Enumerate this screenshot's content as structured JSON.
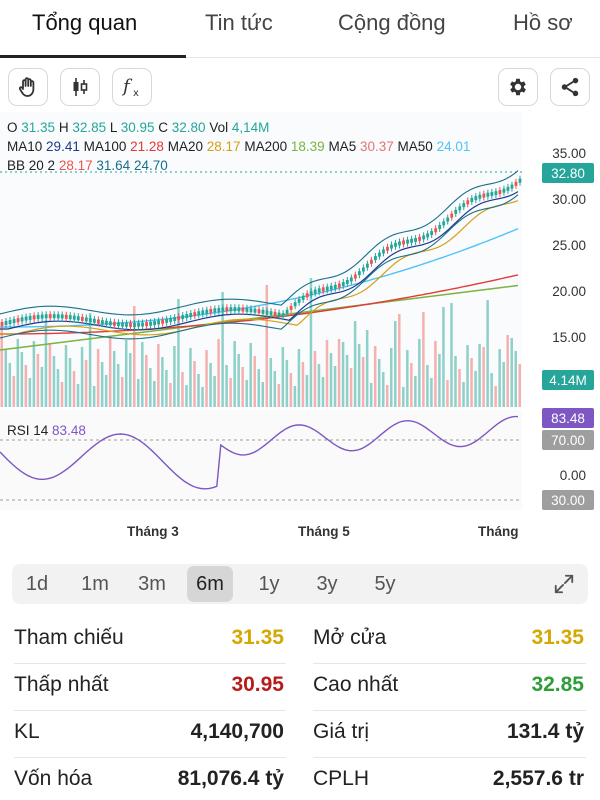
{
  "tabs": [
    "Tổng quan",
    "Tin tức",
    "Cộng đồng",
    "Hồ sơ"
  ],
  "toolbar": {
    "left_icons": [
      "hand-icon",
      "candlestick-icon",
      "function-icon"
    ],
    "right_icons": [
      "gear-icon",
      "share-icon"
    ]
  },
  "info": {
    "o_label": "O",
    "o_value": "31.35",
    "h_label": "H",
    "h_value": "32.85",
    "l_label": "L",
    "l_value": "30.95",
    "c_label": "C",
    "c_value": "32.80",
    "vol_label": "Vol",
    "vol_value": "4,14M",
    "ma10_label": "MA10",
    "ma10_value": "29.41",
    "ma100_label": "MA100",
    "ma100_value": "21.28",
    "ma20_label": "MA20",
    "ma20_value": "28.17",
    "ma200_label": "MA200",
    "ma200_value": "18.39",
    "ma5_label": "MA5",
    "ma5_value": "30.37",
    "ma50_label": "MA50",
    "ma50_value": "24.01",
    "bb_label": "BB 20 2",
    "bb_mid": "28.17",
    "bb_upper": "31.64",
    "bb_lower": "24.70",
    "rsi_label": "RSI 14",
    "rsi_value": "83.48"
  },
  "price_axis": [
    "35.00",
    "30.00",
    "25.00",
    "20.00",
    "15.00"
  ],
  "rsi_axis": {
    "upper": "70.00",
    "mid": "0.00",
    "lower": "30.00"
  },
  "tags": {
    "price": "32.80",
    "volume": "4.14M",
    "rsi": "83.48",
    "rsi_upper": "70.00",
    "rsi_lower": "30.00"
  },
  "months": [
    "Tháng 3",
    "Tháng 5",
    "Tháng "
  ],
  "colors": {
    "up": "#26a69a",
    "down": "#ef5350",
    "ma10": "#1e3a8a",
    "ma20": "#d4a017",
    "ma50": "#4fc3f7",
    "ma100": "#e53935",
    "ma200": "#7cb342",
    "ma5": "#e57373",
    "rsi": "#7e57c2",
    "bb": "#1a6f8a"
  },
  "ranges": [
    "1d",
    "1m",
    "3m",
    "6m",
    "1y",
    "3y",
    "5y"
  ],
  "active_range": "6m",
  "stats": {
    "tham_chieu_label": "Tham chiếu",
    "tham_chieu_value": "31.35",
    "mo_cua_label": "Mở cửa",
    "mo_cua_value": "31.35",
    "thap_nhat_label": "Thấp nhất",
    "thap_nhat_value": "30.95",
    "cao_nhat_label": "Cao nhất",
    "cao_nhat_value": "32.85",
    "kl_label": "KL",
    "kl_value": "4,140,700",
    "gia_tri_label": "Giá trị",
    "gia_tri_value": "131.4 tỷ",
    "von_hoa_label": "Vốn hóa",
    "von_hoa_value": "81,076.4 tỷ",
    "cplh_label": "CPLH",
    "cplh_value": "2,557.6 tr"
  }
}
